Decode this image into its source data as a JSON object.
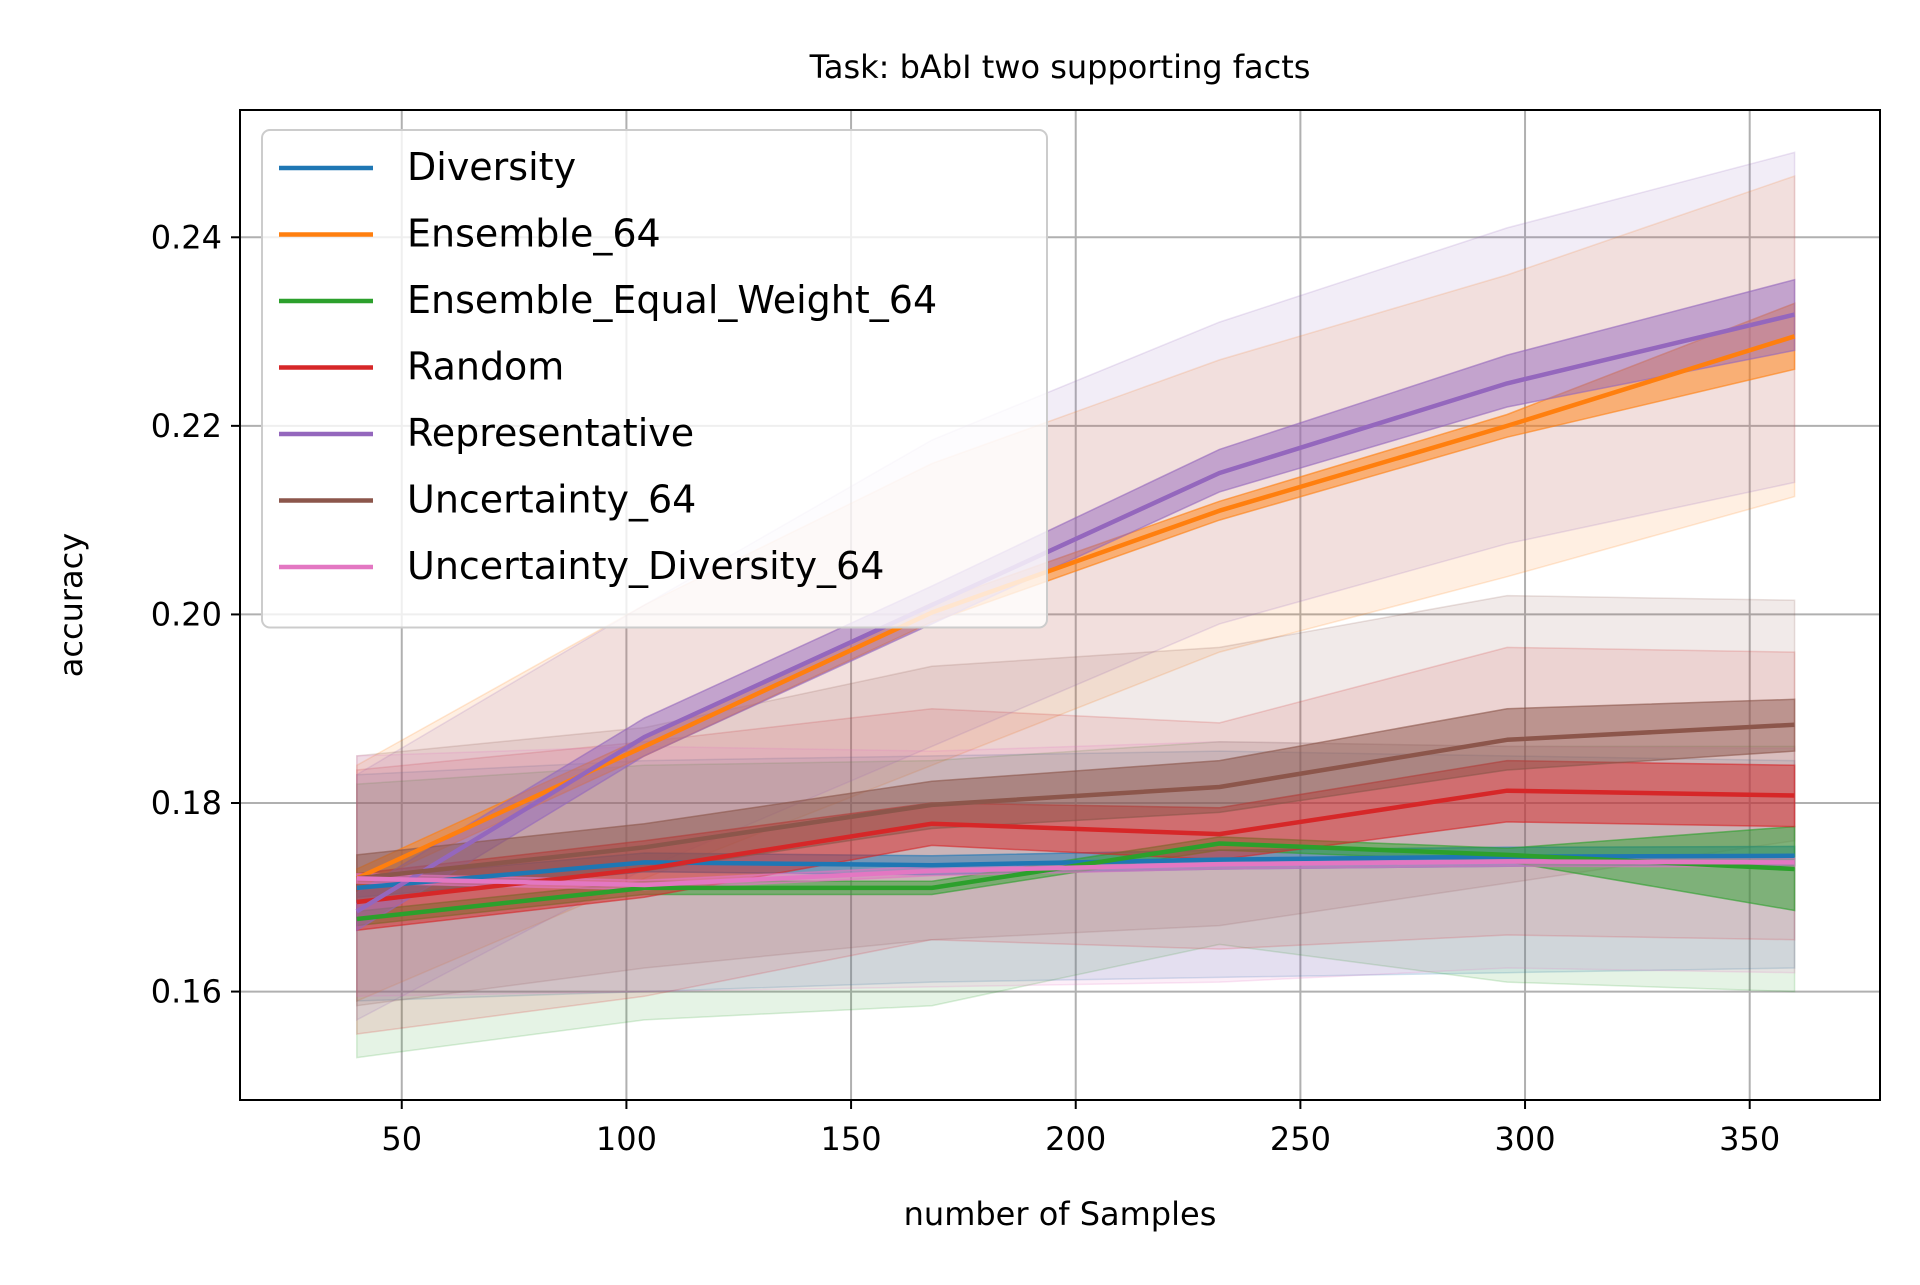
{
  "chart_data": {
    "type": "line",
    "title": "Task: bAbI two supporting facts",
    "xlabel": "number of Samples",
    "ylabel": "accuracy",
    "xlim": [
      14,
      379
    ],
    "ylim": [
      0.1485,
      0.2535
    ],
    "x_ticks": [
      50,
      100,
      150,
      200,
      250,
      300,
      350
    ],
    "x_tick_labels": [
      "50",
      "100",
      "150",
      "200",
      "250",
      "300",
      "350"
    ],
    "y_ticks": [
      0.16,
      0.18,
      0.2,
      0.22,
      0.24
    ],
    "y_tick_labels": [
      "0.16",
      "0.18",
      "0.20",
      "0.22",
      "0.24"
    ],
    "grid": true,
    "legend_position": "upper-left",
    "x": [
      40,
      104,
      168,
      232,
      296,
      360
    ],
    "series": [
      {
        "name": "Diversity",
        "color": "#1f77b4",
        "values": [
          0.171,
          0.1737,
          0.1734,
          0.174,
          0.1743,
          0.1744
        ],
        "ci_inner": [
          [
            0.17,
            0.172
          ],
          [
            0.1727,
            0.1747
          ],
          [
            0.1724,
            0.1744
          ],
          [
            0.173,
            0.175
          ],
          [
            0.1733,
            0.1753
          ],
          [
            0.1734,
            0.1754
          ]
        ],
        "ci_outer": [
          [
            0.159,
            0.183
          ],
          [
            0.16,
            0.1845
          ],
          [
            0.161,
            0.185
          ],
          [
            0.1615,
            0.1855
          ],
          [
            0.162,
            0.185
          ],
          [
            0.1625,
            0.1845
          ]
        ]
      },
      {
        "name": "Ensemble_64",
        "color": "#ff7f0e",
        "values": [
          0.172,
          0.186,
          0.2002,
          0.211,
          0.22,
          0.2295
        ],
        "ci_inner": [
          [
            0.171,
            0.173
          ],
          [
            0.185,
            0.187
          ],
          [
            0.1992,
            0.2012
          ],
          [
            0.21,
            0.212
          ],
          [
            0.2188,
            0.2212
          ],
          [
            0.226,
            0.233
          ]
        ],
        "ci_outer": [
          [
            0.159,
            0.184
          ],
          [
            0.172,
            0.201
          ],
          [
            0.184,
            0.216
          ],
          [
            0.196,
            0.227
          ],
          [
            0.204,
            0.236
          ],
          [
            0.2125,
            0.2465
          ]
        ]
      },
      {
        "name": "Ensemble_Equal_Weight_64",
        "color": "#2ca02c",
        "values": [
          0.1677,
          0.171,
          0.171,
          0.1757,
          0.1745,
          0.173
        ],
        "ci_inner": [
          [
            0.167,
            0.1685
          ],
          [
            0.1703,
            0.1717
          ],
          [
            0.1703,
            0.1717
          ],
          [
            0.175,
            0.1764
          ],
          [
            0.1738,
            0.1752
          ],
          [
            0.1686,
            0.1775
          ]
        ],
        "ci_outer": [
          [
            0.153,
            0.182
          ],
          [
            0.157,
            0.184
          ],
          [
            0.1585,
            0.1845
          ],
          [
            0.165,
            0.1865
          ],
          [
            0.161,
            0.186
          ],
          [
            0.16,
            0.186
          ]
        ]
      },
      {
        "name": "Random",
        "color": "#d62728",
        "values": [
          0.1695,
          0.173,
          0.1778,
          0.1767,
          0.1813,
          0.1808
        ],
        "ci_inner": [
          [
            0.1665,
            0.1725
          ],
          [
            0.17,
            0.176
          ],
          [
            0.1755,
            0.18
          ],
          [
            0.174,
            0.1795
          ],
          [
            0.178,
            0.1845
          ],
          [
            0.1775,
            0.184
          ]
        ],
        "ci_outer": [
          [
            0.1555,
            0.1835
          ],
          [
            0.1595,
            0.1865
          ],
          [
            0.1655,
            0.19
          ],
          [
            0.1645,
            0.1885
          ],
          [
            0.166,
            0.1965
          ],
          [
            0.1655,
            0.196
          ]
        ]
      },
      {
        "name": "Representative",
        "color": "#9467bd",
        "values": [
          0.1685,
          0.187,
          0.201,
          0.215,
          0.2245,
          0.2318
        ],
        "ci_inner": [
          [
            0.1665,
            0.1705
          ],
          [
            0.185,
            0.189
          ],
          [
            0.199,
            0.203
          ],
          [
            0.213,
            0.2175
          ],
          [
            0.222,
            0.2275
          ],
          [
            0.228,
            0.2355
          ]
        ],
        "ci_outer": [
          [
            0.157,
            0.183
          ],
          [
            0.173,
            0.201
          ],
          [
            0.186,
            0.2185
          ],
          [
            0.199,
            0.231
          ],
          [
            0.2075,
            0.241
          ],
          [
            0.214,
            0.249
          ]
        ]
      },
      {
        "name": "Uncertainty_64",
        "color": "#8c564b",
        "values": [
          0.172,
          0.1753,
          0.1798,
          0.1817,
          0.1867,
          0.1883
        ],
        "ci_inner": [
          [
            0.1695,
            0.1745
          ],
          [
            0.1728,
            0.1778
          ],
          [
            0.1773,
            0.1823
          ],
          [
            0.179,
            0.1845
          ],
          [
            0.1835,
            0.19
          ],
          [
            0.1855,
            0.191
          ]
        ],
        "ci_outer": [
          [
            0.1585,
            0.185
          ],
          [
            0.1625,
            0.188
          ],
          [
            0.1655,
            0.1945
          ],
          [
            0.167,
            0.1965
          ],
          [
            0.1715,
            0.202
          ],
          [
            0.176,
            0.2015
          ]
        ]
      },
      {
        "name": "Uncertainty_Diversity_64",
        "color": "#e377c2",
        "values": [
          0.172,
          0.1713,
          0.1728,
          0.1735,
          0.1738,
          0.1737
        ],
        "ci_inner": [
          [
            0.1715,
            0.1725
          ],
          [
            0.1708,
            0.1718
          ],
          [
            0.1723,
            0.1733
          ],
          [
            0.173,
            0.174
          ],
          [
            0.1733,
            0.1743
          ],
          [
            0.1732,
            0.1742
          ]
        ],
        "ci_outer": [
          [
            0.1595,
            0.185
          ],
          [
            0.16,
            0.186
          ],
          [
            0.1605,
            0.1855
          ],
          [
            0.161,
            0.1865
          ],
          [
            0.1625,
            0.186
          ],
          [
            0.162,
            0.1858
          ]
        ]
      }
    ]
  }
}
